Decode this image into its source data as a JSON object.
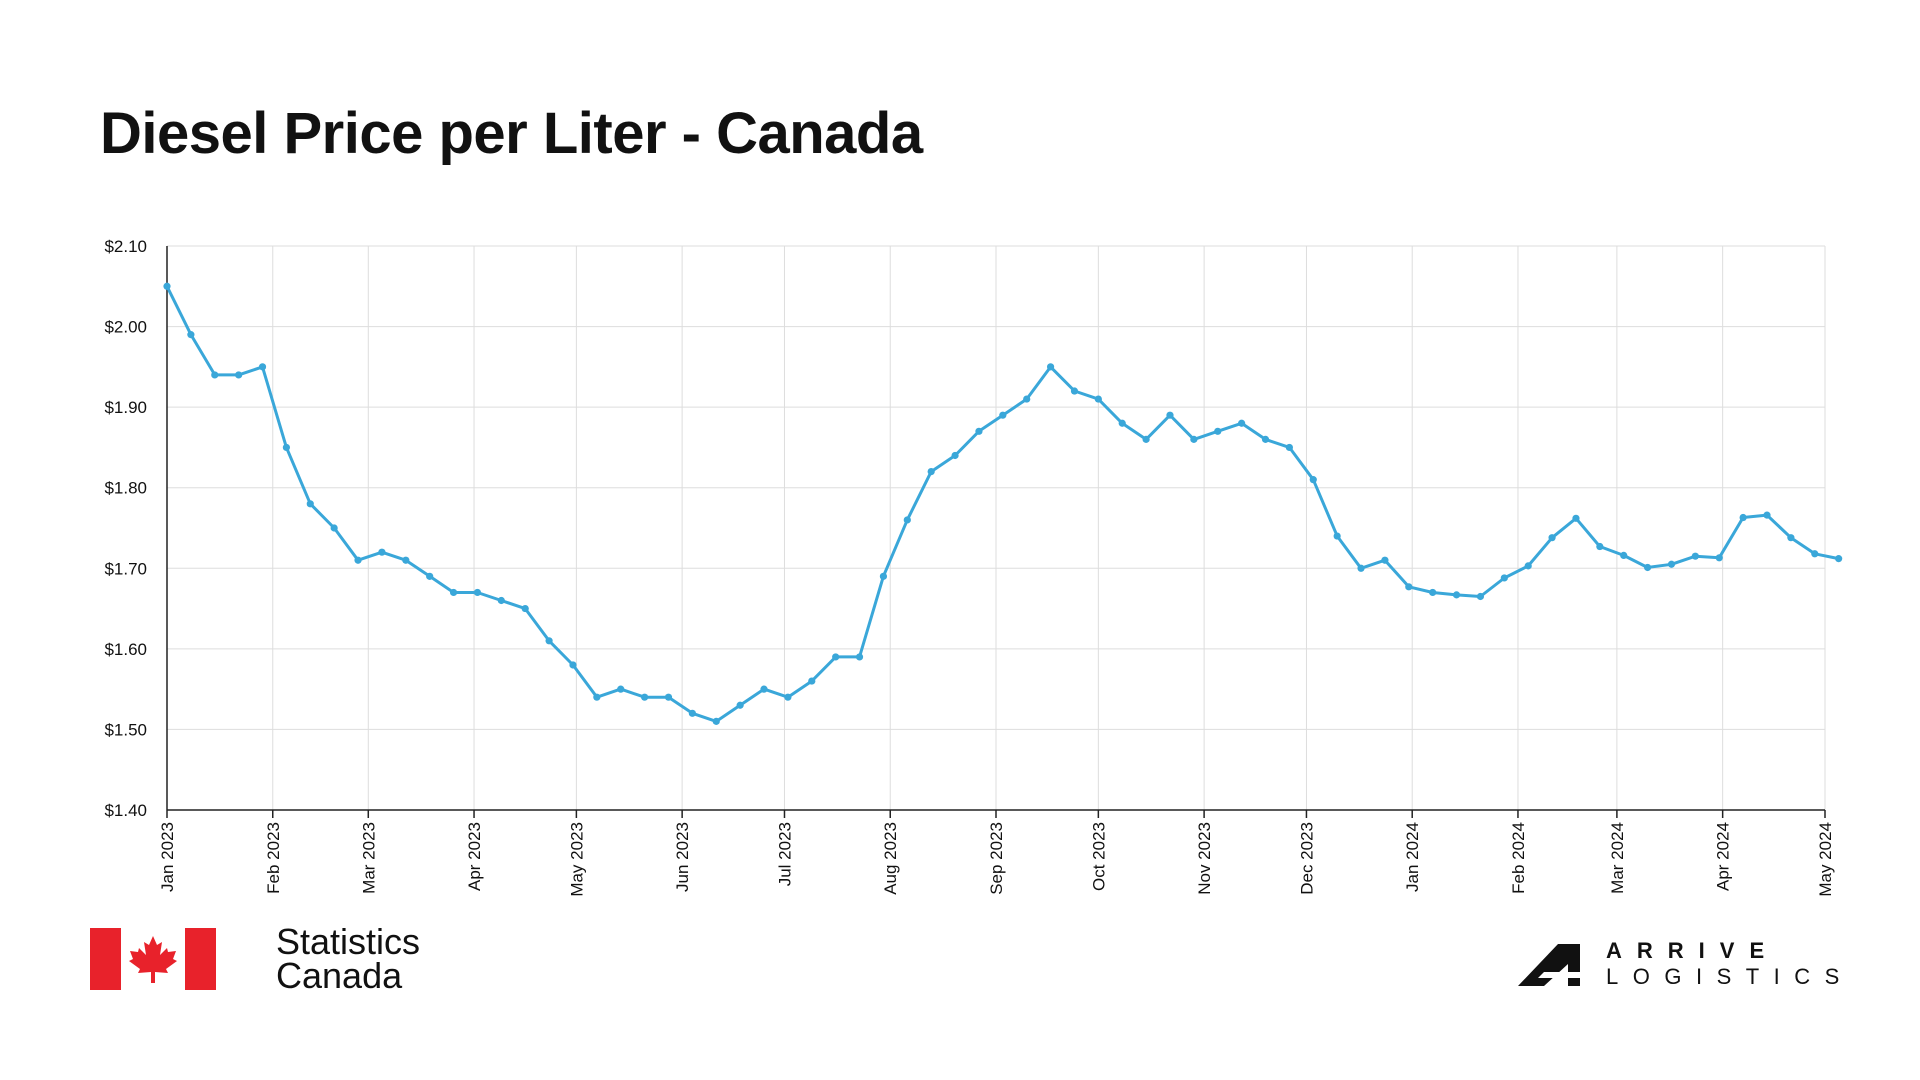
{
  "page": {
    "title": "Diesel Price per Liter - Canada"
  },
  "colors": {
    "line": "#3aa7d9",
    "grid": "#dddddd",
    "axis": "#222222",
    "flag_red": "#e8222b"
  },
  "chart_data": {
    "type": "line",
    "title": "Diesel Price per Liter - Canada",
    "xlabel": "",
    "ylabel": "",
    "ylim": [
      1.4,
      2.1
    ],
    "xlim": [
      "2023-01-01",
      "2024-05-01"
    ],
    "grid": true,
    "y_ticks": [
      "$1.40",
      "$1.50",
      "$1.60",
      "$1.70",
      "$1.80",
      "$1.90",
      "$2.00",
      "$2.10"
    ],
    "y_tick_values": [
      1.4,
      1.5,
      1.6,
      1.7,
      1.8,
      1.9,
      2.0,
      2.1
    ],
    "x_ticks": [
      "Jan 2023",
      "Feb 2023",
      "Mar 2023",
      "Apr 2023",
      "May 2023",
      "Jun 2023",
      "Jul 2023",
      "Aug 2023",
      "Sep 2023",
      "Oct 2023",
      "Nov 2023",
      "Dec 2023",
      "Jan 2024",
      "Feb 2024",
      "Mar 2024",
      "Apr 2024",
      "May 2024"
    ],
    "x_tick_dates": [
      "2023-01-01",
      "2023-02-01",
      "2023-03-01",
      "2023-04-01",
      "2023-05-01",
      "2023-06-01",
      "2023-07-01",
      "2023-08-01",
      "2023-09-01",
      "2023-10-01",
      "2023-11-01",
      "2023-12-01",
      "2024-01-01",
      "2024-02-01",
      "2024-03-01",
      "2024-04-01",
      "2024-05-01"
    ],
    "series": [
      {
        "x": [
          "2023-01-01",
          "2023-01-08",
          "2023-01-15",
          "2023-01-22",
          "2023-01-29",
          "2023-02-05",
          "2023-02-12",
          "2023-02-19",
          "2023-02-26",
          "2023-03-05",
          "2023-03-12",
          "2023-03-19",
          "2023-03-26",
          "2023-04-02",
          "2023-04-09",
          "2023-04-16",
          "2023-04-23",
          "2023-04-30",
          "2023-05-07",
          "2023-05-14",
          "2023-05-21",
          "2023-05-28",
          "2023-06-04",
          "2023-06-11",
          "2023-06-18",
          "2023-06-25",
          "2023-07-02",
          "2023-07-09",
          "2023-07-16",
          "2023-07-23",
          "2023-07-30",
          "2023-08-06",
          "2023-08-13",
          "2023-08-20",
          "2023-08-27",
          "2023-09-03",
          "2023-09-10",
          "2023-09-17",
          "2023-09-24",
          "2023-10-01",
          "2023-10-08",
          "2023-10-15",
          "2023-10-22",
          "2023-10-29",
          "2023-11-05",
          "2023-11-12",
          "2023-11-19",
          "2023-11-26",
          "2023-12-03",
          "2023-12-10",
          "2023-12-17",
          "2023-12-24",
          "2023-12-31",
          "2024-01-07",
          "2024-01-14",
          "2024-01-21",
          "2024-01-28",
          "2024-02-04",
          "2024-02-11",
          "2024-02-18",
          "2024-02-25",
          "2024-03-03",
          "2024-03-10",
          "2024-03-17",
          "2024-03-24",
          "2024-03-31",
          "2024-04-07",
          "2024-04-14",
          "2024-04-21",
          "2024-04-28",
          "2024-05-05"
        ],
        "values": [
          2.05,
          1.99,
          1.94,
          1.94,
          1.95,
          1.85,
          1.78,
          1.75,
          1.71,
          1.72,
          1.71,
          1.69,
          1.67,
          1.67,
          1.66,
          1.65,
          1.61,
          1.58,
          1.54,
          1.55,
          1.54,
          1.54,
          1.52,
          1.51,
          1.53,
          1.55,
          1.54,
          1.56,
          1.59,
          1.59,
          1.69,
          1.76,
          1.82,
          1.84,
          1.87,
          1.89,
          1.91,
          1.95,
          1.92,
          1.91,
          1.88,
          1.86,
          1.89,
          1.86,
          1.87,
          1.88,
          1.86,
          1.85,
          1.81,
          1.74,
          1.7,
          1.71,
          1.677,
          1.67,
          1.667,
          1.665,
          1.688,
          1.703,
          1.738,
          1.762,
          1.727,
          1.716,
          1.701,
          1.705,
          1.715,
          1.713,
          1.763,
          1.766,
          1.738,
          1.718,
          1.712
        ]
      }
    ]
  },
  "footer": {
    "statcan_line1": "Statistics",
    "statcan_line2": "Canada",
    "arrive_word1": "ARRIVE",
    "arrive_word2": "LOGISTICS",
    "flag_icon": "canada-flag-icon",
    "arrive_icon": "arrive-logistics-logo-icon"
  }
}
